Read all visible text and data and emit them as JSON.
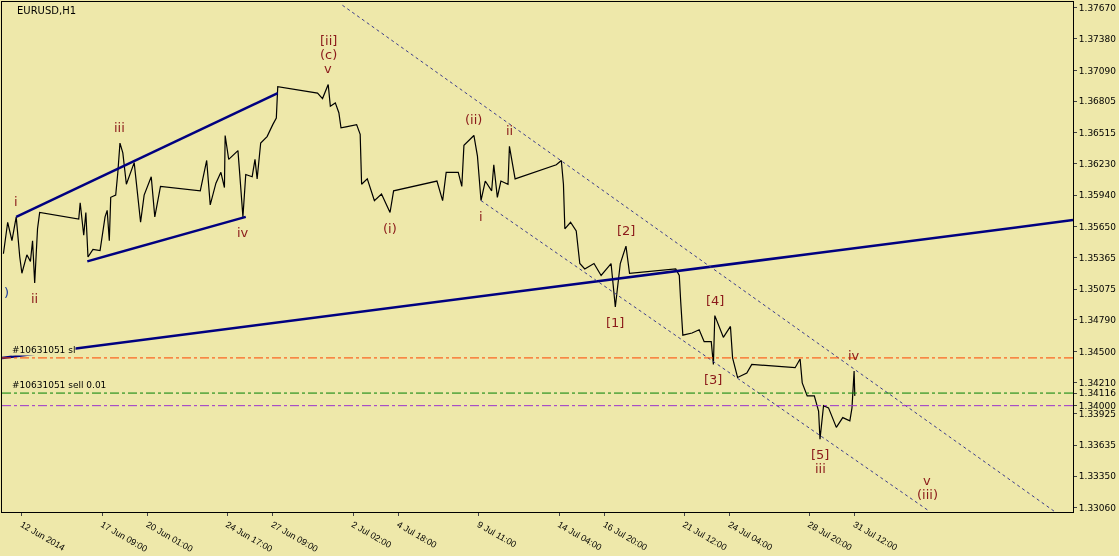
{
  "chart_data": {
    "type": "line",
    "title": "EURUSD,H1",
    "xlim": [
      "2014-06-11T12:00",
      "2014-08-13T07:00"
    ],
    "ylim": [
      1.3302,
      1.3772
    ],
    "xticks": [
      {
        "value": "2014-06-12T16:00",
        "label": "12 Jun 2014"
      },
      {
        "value": "2014-06-17T09:00",
        "label": "17 Jun 09:00"
      },
      {
        "value": "2014-06-20T01:00",
        "label": "20 Jun 01:00"
      },
      {
        "value": "2014-06-24T17:00",
        "label": "24 Jun 17:00"
      },
      {
        "value": "2014-06-27T09:00",
        "label": "27 Jun 09:00"
      },
      {
        "value": "2014-07-02T02:00",
        "label": "2 Jul 02:00"
      },
      {
        "value": "2014-07-04T18:00",
        "label": "4 Jul 18:00"
      },
      {
        "value": "2014-07-09T11:00",
        "label": "9 Jul 11:00"
      },
      {
        "value": "2014-07-14T04:00",
        "label": "14 Jul 04:00"
      },
      {
        "value": "2014-07-16T20:00",
        "label": "16 Jul 20:00"
      },
      {
        "value": "2014-07-21T12:00",
        "label": "21 Jul 12:00"
      },
      {
        "value": "2014-07-24T04:00",
        "label": "24 Jul 04:00"
      },
      {
        "value": "2014-07-28T20:00",
        "label": "28 Jul 20:00"
      },
      {
        "value": "2014-07-31T12:00",
        "label": "31 Jul 12:00"
      }
    ],
    "yticks": [
      {
        "value": 1.3767,
        "label": "1.37670"
      },
      {
        "value": 1.3738,
        "label": "1.37380"
      },
      {
        "value": 1.3709,
        "label": "1.37090"
      },
      1.36805,
      1.36515,
      {
        "value": 1.3623,
        "label": "1.36230"
      },
      {
        "value": 1.3594,
        "label": "1.35940"
      },
      {
        "value": 1.3565,
        "label": "1.35650"
      },
      1.35365,
      1.35075,
      {
        "value": 1.3479,
        "label": "1.34790"
      },
      {
        "value": 1.345,
        "label": "1.34500"
      },
      {
        "value": 1.3421,
        "label": "1.34210"
      },
      1.34116,
      {
        "value": 1.34,
        "label": "1.34000"
      },
      1.33925,
      1.33635,
      {
        "value": 1.3335,
        "label": "1.33350"
      },
      {
        "value": 1.3306,
        "label": "1.33060"
      }
    ],
    "series": [
      {
        "color": "#000000",
        "x": [
          "2014-06-11T14:00",
          "2014-06-11T20:00",
          "2014-06-12T02:00",
          "2014-06-12T08:00",
          "2014-06-12T13:00",
          "2014-06-12T16:00",
          "2014-06-12T23:00",
          "2014-06-13T04:00",
          "2014-06-13T07:00",
          "2014-06-13T10:00",
          "2014-06-13T14:00",
          "2014-06-13T17:00",
          "2014-06-16T00:00",
          "2014-06-16T02:00",
          "2014-06-16T07:00",
          "2014-06-16T10:00",
          "2014-06-16T13:00",
          "2014-06-16T20:00",
          "2014-06-17T06:00",
          "2014-06-17T13:00",
          "2014-06-17T16:00",
          "2014-06-17T19:00",
          "2014-06-17T21:00",
          "2014-06-18T04:00",
          "2014-06-18T07:00",
          "2014-06-18T10:00",
          "2014-06-18T14:00",
          "2014-06-18T19:00",
          "2014-06-19T06:00",
          "2014-06-19T15:00",
          "2014-06-19T20:00",
          "2014-06-20T06:00",
          "2014-06-20T11:00",
          "2014-06-20T19:00",
          "2014-06-23T03:00",
          "2014-06-23T12:00",
          "2014-06-23T17:00",
          "2014-06-24T01:00",
          "2014-06-24T08:00",
          "2014-06-24T13:00",
          "2014-06-24T14:00",
          "2014-06-24T19:00",
          "2014-06-25T08:00",
          "2014-06-25T10:00",
          "2014-06-25T15:00",
          "2014-06-25T19:00",
          "2014-06-26T04:00",
          "2014-06-26T08:00",
          "2014-06-26T11:00",
          "2014-06-26T16:00",
          "2014-06-27T01:00",
          "2014-06-27T09:00",
          "2014-06-27T14:00",
          "2014-06-27T16:00",
          "2014-06-30T00:00",
          "2014-06-30T07:00",
          "2014-06-30T15:00",
          "2014-06-30T18:00",
          "2014-07-01T01:00",
          "2014-07-01T06:00",
          "2014-07-01T09:00",
          "2014-07-01T16:00",
          "2014-07-02T07:00",
          "2014-07-02T12:00",
          "2014-07-02T14:00",
          "2014-07-02T22:00",
          "2014-07-03T08:00",
          "2014-07-03T18:00",
          "2014-07-04T06:00",
          "2014-07-04T11:00",
          "2014-07-07T00:00",
          "2014-07-07T08:00",
          "2014-07-07T13:00",
          "2014-07-08T06:00",
          "2014-07-08T11:00",
          "2014-07-08T14:00",
          "2014-07-09T04:00",
          "2014-07-09T09:00",
          "2014-07-09T14:00",
          "2014-07-09T20:00",
          "2014-07-10T05:00",
          "2014-07-10T08:00",
          "2014-07-10T13:00",
          "2014-07-10T18:00",
          "2014-07-11T04:00",
          "2014-07-11T06:00",
          "2014-07-11T14:00",
          "2014-07-14T00:00",
          "2014-07-14T07:00",
          "2014-07-14T10:00",
          "2014-07-14T12:00",
          "2014-07-14T20:00",
          "2014-07-15T04:00",
          "2014-07-15T09:00",
          "2014-07-15T16:00",
          "2014-07-16T05:00",
          "2014-07-16T15:00",
          "2014-07-17T05:00",
          "2014-07-17T11:00",
          "2014-07-17T18:00",
          "2014-07-18T02:00",
          "2014-07-18T07:00",
          "2014-07-21T00:00",
          "2014-07-21T05:00",
          "2014-07-21T07:00",
          "2014-07-21T10:00",
          "2014-07-21T23:00",
          "2014-07-22T09:00",
          "2014-07-22T16:00",
          "2014-07-23T02:00",
          "2014-07-23T05:00",
          "2014-07-23T07:00",
          "2014-07-23T19:00",
          "2014-07-24T05:00",
          "2014-07-24T08:00",
          "2014-07-24T15:00",
          "2014-07-25T04:00",
          "2014-07-25T11:00",
          "2014-07-28T00:00",
          "2014-07-28T07:00",
          "2014-07-28T10:00",
          "2014-07-28T17:00",
          "2014-07-29T03:00",
          "2014-07-29T09:00",
          "2014-07-29T11:00",
          "2014-07-29T16:00",
          "2014-07-29T23:00",
          "2014-07-30T10:00",
          "2014-07-30T19:00",
          "2014-07-31T05:00",
          "2014-07-31T08:00",
          "2014-07-31T11:00",
          "2014-07-31T12:00"
        ],
        "values": [
          1.354,
          1.3569,
          1.3552,
          1.3574,
          1.3537,
          1.3522,
          1.3539,
          1.3533,
          1.3552,
          1.3513,
          1.3563,
          1.3578,
          1.3572,
          1.3587,
          1.3557,
          1.3578,
          1.3537,
          1.3544,
          1.3543,
          1.3574,
          1.358,
          1.3552,
          1.3592,
          1.3594,
          1.3615,
          1.3642,
          1.3633,
          1.3604,
          1.3624,
          1.3569,
          1.3594,
          1.3611,
          1.3574,
          1.3602,
          1.3598,
          1.3626,
          1.3585,
          1.3605,
          1.3615,
          1.3601,
          1.3649,
          1.3627,
          1.3635,
          1.3618,
          1.3574,
          1.3613,
          1.3611,
          1.3627,
          1.3609,
          1.3642,
          1.3648,
          1.3659,
          1.3665,
          1.3694,
          1.3688,
          1.3683,
          1.3696,
          1.3676,
          1.3679,
          1.367,
          1.3656,
          1.3657,
          1.3659,
          1.365,
          1.3604,
          1.3609,
          1.3589,
          1.3595,
          1.3578,
          1.3598,
          1.3607,
          1.3589,
          1.3615,
          1.3615,
          1.3602,
          1.364,
          1.3649,
          1.363,
          1.3589,
          1.3607,
          1.3598,
          1.3622,
          1.3592,
          1.3607,
          1.3604,
          1.3639,
          1.3609,
          1.3622,
          1.3626,
          1.3604,
          1.3563,
          1.3569,
          1.3561,
          1.3531,
          1.3526,
          1.3531,
          1.352,
          1.3531,
          1.3491,
          1.3531,
          1.3547,
          1.3522,
          1.3526,
          1.352,
          1.3496,
          1.3465,
          1.3467,
          1.347,
          1.3459,
          1.3459,
          1.3438,
          1.3483,
          1.3463,
          1.3473,
          1.3444,
          1.3426,
          1.343,
          1.3438,
          1.3435,
          1.3443,
          1.3421,
          1.3409,
          1.3409,
          1.3395,
          1.3369,
          1.34,
          1.3398,
          1.338,
          1.3389,
          1.3386,
          1.3398,
          1.3432,
          1.3409
        ]
      },
      {
        "type": "line",
        "color": "#000080",
        "line_style": "solid",
        "x": [
          "2014-06-12T08:00",
          "2014-06-27T16:00"
        ],
        "values": [
          1.3574,
          1.3688
        ]
      },
      {
        "type": "line",
        "color": "#000080",
        "line_style": "solid",
        "x": [
          "2014-06-16T12:00",
          "2014-06-25T19:00"
        ],
        "values": [
          1.3533,
          1.3574
        ]
      },
      {
        "type": "line",
        "color": "#000080",
        "line_style": "solid",
        "x": [
          "2014-06-11T12:00",
          "2014-08-13T07:00"
        ],
        "values": [
          1.3444,
          1.3571
        ]
      },
      {
        "type": "line",
        "color": "#3c3c8c",
        "line_style": "dotted",
        "x": [
          "2014-07-01T11:00",
          "2014-08-12T06:00"
        ],
        "values": [
          1.3769,
          1.3302
        ]
      },
      {
        "type": "line",
        "color": "#3c3c8c",
        "line_style": "dotted",
        "x": [
          "2014-07-09T14:00",
          "2014-08-04T18:00"
        ],
        "values": [
          1.3589,
          1.3304
        ]
      }
    ],
    "ref_lines": [
      {
        "axis": "y",
        "value": 1.3444,
        "label": "#10631051 sl",
        "color": "#ff4500",
        "line_style": "dashed"
      },
      {
        "axis": "y",
        "value": 1.34116,
        "label": "#10631051 sell 0.01",
        "color": "#008000",
        "line_style": "dashed"
      },
      {
        "axis": "y",
        "value": 1.34,
        "color": "#9932cc",
        "line_style": "dashed"
      }
    ],
    "annotations": [
      ")",
      {
        "text": "i",
        "x": "2014-06-12T08:00",
        "y": 1.3574
      },
      {
        "text": "ii",
        "x": "2014-06-13T10:00",
        "y": 1.3513
      },
      {
        "text": "iii",
        "x": "2014-06-18T10:00",
        "y": 1.3642
      },
      {
        "text": "iv",
        "x": "2014-06-25T15:00",
        "y": 1.3574
      },
      {
        "text": "v",
        "x": "2014-06-30T15:00",
        "y": 1.3696
      },
      {
        "text": "(c)",
        "x": "2014-06-30T15:00",
        "y": 1.3696
      },
      {
        "text": "[ii]",
        "x": "2014-06-30T15:00",
        "y": 1.3696
      },
      {
        "text": "(i)",
        "x": "2014-07-04T06:00",
        "y": 1.3578
      },
      {
        "text": "(ii)",
        "x": "2014-07-09T04:00",
        "y": 1.3649
      },
      {
        "text": "i",
        "x": "2014-07-09T14:00",
        "y": 1.3589
      },
      {
        "text": "ii",
        "x": "2014-07-11T06:00",
        "y": 1.3639
      },
      {
        "text": "[2]",
        "x": "2014-07-18T02:00",
        "y": 1.3547
      },
      {
        "text": "[1]",
        "x": "2014-07-17T11:00",
        "y": 1.3491
      },
      {
        "text": "[4]",
        "x": "2014-07-23T07:00",
        "y": 1.3483
      },
      {
        "text": "[3]",
        "x": "2014-07-23T05:00",
        "y": 1.3438
      },
      {
        "text": "iv",
        "x": "2014-07-31T11:00",
        "y": 1.3432
      },
      {
        "text": "[5]",
        "x": "2014-07-29T11:00",
        "y": 1.3369
      },
      {
        "text": "iii",
        "x": "2014-07-29T11:00",
        "y": 1.3369
      },
      {
        "text": "(iii)",
        "x": "2014-08-04T18:00",
        "y": 1.3304
      },
      {
        "text": "v",
        "x": "2014-08-04T18:00",
        "y": 1.3304
      }
    ]
  }
}
